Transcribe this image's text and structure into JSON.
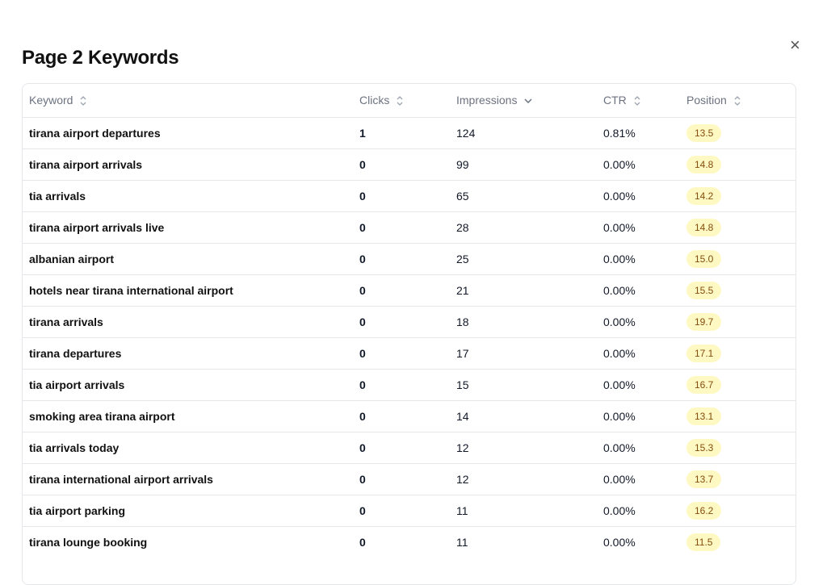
{
  "dialog": {
    "title": "Page 2 Keywords",
    "close": "×"
  },
  "table": {
    "headers": [
      "Keyword",
      "Clicks",
      "Impressions",
      "CTR",
      "Position"
    ],
    "rows": [
      [
        "tirana airport departures",
        "1",
        "124",
        "0.81%",
        "13.5"
      ],
      [
        "tirana airport arrivals",
        "0",
        "99",
        "0.00%",
        "14.8"
      ],
      [
        "tia arrivals",
        "0",
        "65",
        "0.00%",
        "14.2"
      ],
      [
        "tirana airport arrivals live",
        "0",
        "28",
        "0.00%",
        "14.8"
      ],
      [
        "albanian airport",
        "0",
        "25",
        "0.00%",
        "15.0"
      ],
      [
        "hotels near tirana international airport",
        "0",
        "21",
        "0.00%",
        "15.5"
      ],
      [
        "tirana arrivals",
        "0",
        "18",
        "0.00%",
        "19.7"
      ],
      [
        "tirana departures",
        "0",
        "17",
        "0.00%",
        "17.1"
      ],
      [
        "tia airport arrivals",
        "0",
        "15",
        "0.00%",
        "16.7"
      ],
      [
        "smoking area tirana airport",
        "0",
        "14",
        "0.00%",
        "13.1"
      ],
      [
        "tia arrivals today",
        "0",
        "12",
        "0.00%",
        "15.3"
      ],
      [
        "tirana international airport arrivals",
        "0",
        "12",
        "0.00%",
        "13.7"
      ],
      [
        "tia airport parking",
        "0",
        "11",
        "0.00%",
        "16.2"
      ],
      [
        "tirana lounge booking",
        "0",
        "11",
        "0.00%",
        "11.5"
      ]
    ]
  }
}
